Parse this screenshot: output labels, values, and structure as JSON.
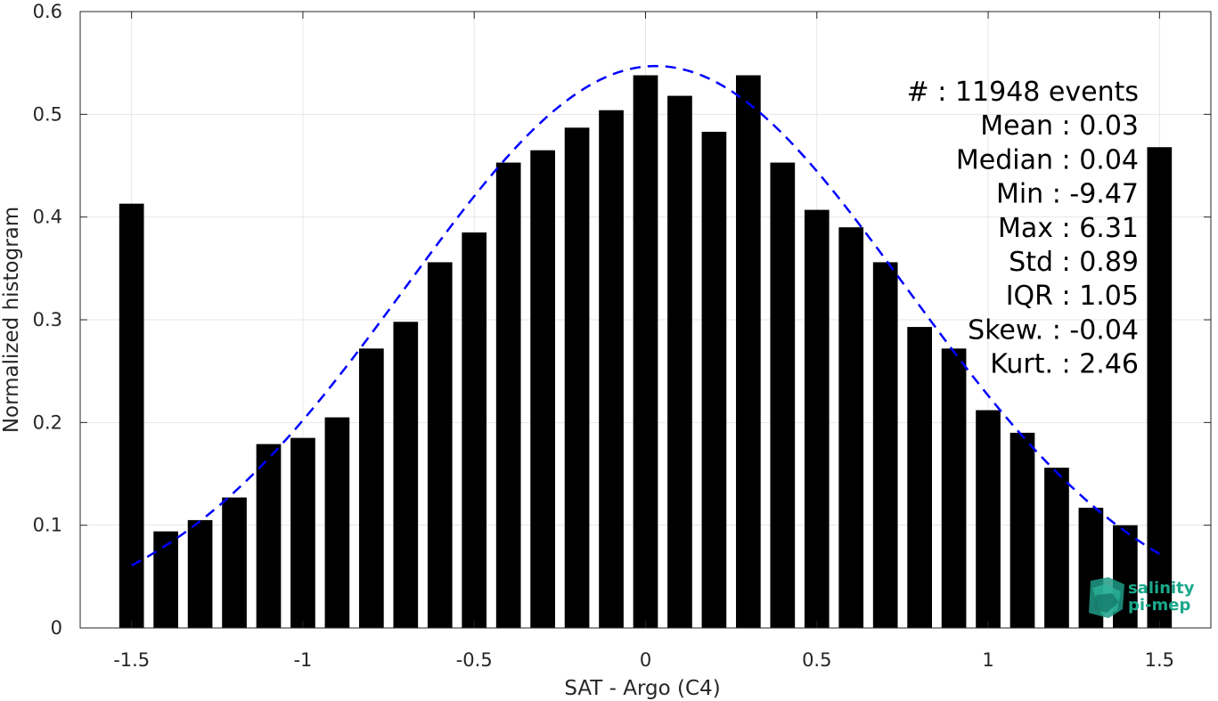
{
  "chart_data": {
    "type": "bar",
    "title": "",
    "xlabel": "SAT - Argo (C4)",
    "ylabel": "Normalized histogram",
    "xlim": [
      -1.65,
      1.65
    ],
    "ylim": [
      0,
      0.6
    ],
    "x_ticks": [
      -1.5,
      -1,
      -0.5,
      0,
      0.5,
      1,
      1.5
    ],
    "x_tick_labels": [
      "-1.5",
      "-1",
      "-0.5",
      "0",
      "0.5",
      "1",
      "1.5"
    ],
    "y_ticks": [
      0,
      0.1,
      0.2,
      0.3,
      0.4,
      0.5,
      0.6
    ],
    "y_tick_labels": [
      "0",
      "0.1",
      "0.2",
      "0.3",
      "0.4",
      "0.5",
      "0.6"
    ],
    "grid": true,
    "bar_color": "#000000",
    "x": [
      -1.5,
      -1.4,
      -1.3,
      -1.2,
      -1.1,
      -1.0,
      -0.9,
      -0.8,
      -0.7,
      -0.6,
      -0.5,
      -0.4,
      -0.3,
      -0.2,
      -0.1,
      0.0,
      0.1,
      0.2,
      0.3,
      0.4,
      0.5,
      0.6,
      0.7,
      0.8,
      0.9,
      1.0,
      1.1,
      1.2,
      1.3,
      1.4,
      1.5
    ],
    "values": [
      0.413,
      0.094,
      0.105,
      0.127,
      0.179,
      0.185,
      0.205,
      0.272,
      0.298,
      0.356,
      0.385,
      0.453,
      0.465,
      0.487,
      0.504,
      0.538,
      0.518,
      0.483,
      0.538,
      0.453,
      0.407,
      0.39,
      0.356,
      0.293,
      0.272,
      0.212,
      0.19,
      0.156,
      0.117,
      0.1,
      0.468
    ],
    "fit_curve": {
      "type": "gaussian",
      "color": "#0000ff",
      "style": "dashed",
      "x_range": [
        -1.5,
        1.5
      ],
      "mean": 0.03,
      "std": 0.73,
      "peak": 0.547
    },
    "stats": [
      {
        "label": "#  ",
        "value": ": 11948 events"
      },
      {
        "label": "Mean ",
        "value": ": 0.03"
      },
      {
        "label": "Median ",
        "value": ": 0.04"
      },
      {
        "label": "Min ",
        "value": ": -9.47"
      },
      {
        "label": "Max ",
        "value": ": 6.31"
      },
      {
        "label": "Std ",
        "value": ": 0.89"
      },
      {
        "label": "IQR ",
        "value": ": 1.05"
      },
      {
        "label": "Skew. ",
        "value": ": -0.04"
      },
      {
        "label": "Kurt. ",
        "value": ": 2.46"
      }
    ]
  },
  "logo": {
    "line1": "salinity",
    "line2": "pi-mep",
    "color": "#1aa88a"
  }
}
